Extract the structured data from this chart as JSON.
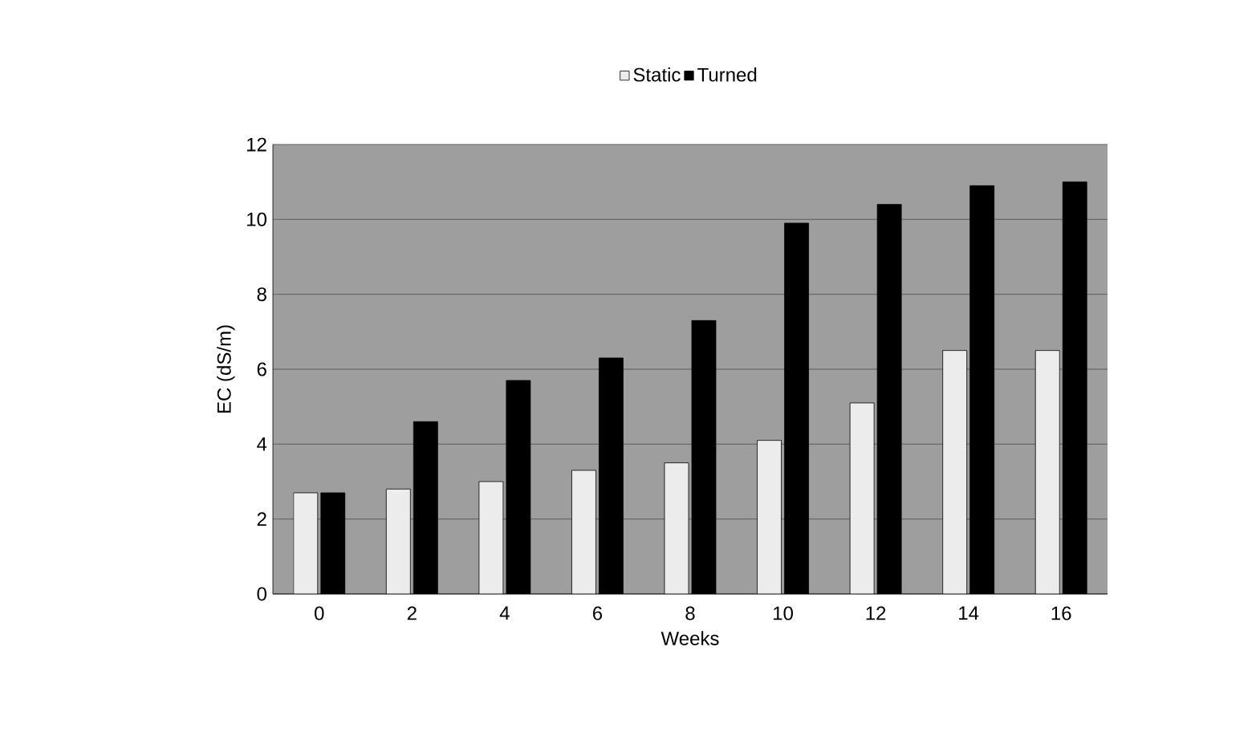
{
  "chart_data": {
    "type": "bar",
    "xlabel": "Weeks",
    "ylabel": "EC (dS/m)",
    "categories": [
      "0",
      "2",
      "4",
      "6",
      "8",
      "10",
      "12",
      "14",
      "16"
    ],
    "series": [
      {
        "name": "Static",
        "color": "#ececec",
        "values": [
          2.7,
          2.8,
          3.0,
          3.3,
          3.5,
          4.1,
          5.1,
          6.5,
          6.5
        ]
      },
      {
        "name": "Turned",
        "color": "#000000",
        "values": [
          2.7,
          4.6,
          5.7,
          6.3,
          7.3,
          9.9,
          10.4,
          10.9,
          11.0
        ]
      }
    ],
    "ylim": [
      0,
      12
    ],
    "yticks": [
      0,
      2,
      4,
      6,
      8,
      10,
      12
    ],
    "grid": "y",
    "legend": "top"
  }
}
